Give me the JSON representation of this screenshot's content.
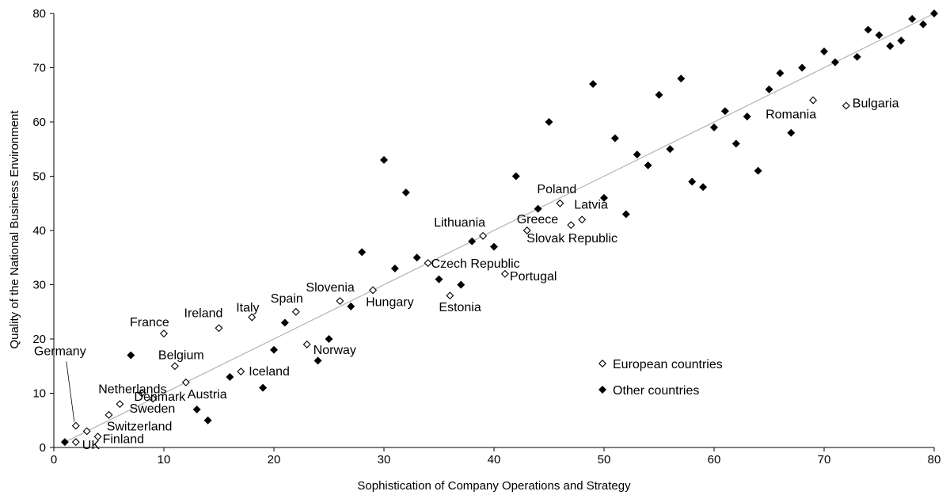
{
  "chart_data": {
    "type": "scatter",
    "title": "",
    "xlabel": "Sophistication of Company Operations and Strategy",
    "ylabel": "Quality of the National Business Environment",
    "xlim": [
      0,
      80
    ],
    "ylim": [
      0,
      80
    ],
    "x_ticks": [
      0,
      10,
      20,
      30,
      40,
      50,
      60,
      70,
      80
    ],
    "y_ticks": [
      0,
      10,
      20,
      30,
      40,
      50,
      60,
      70,
      80
    ],
    "grid": false,
    "legend_position": "right",
    "trendline": {
      "from": [
        1,
        1
      ],
      "to": [
        80,
        80
      ],
      "color": "#b3b3b3"
    },
    "series": [
      {
        "name": "European countries",
        "marker": "open-diamond",
        "color": "#000000",
        "points": [
          {
            "label": "UK",
            "x": 2,
            "y": 1
          },
          {
            "label": "Finland",
            "x": 4,
            "y": 2
          },
          {
            "label": "Switzerland",
            "x": 3,
            "y": 3
          },
          {
            "label": "Germany",
            "x": 2,
            "y": 4
          },
          {
            "label": "Sweden",
            "x": 5,
            "y": 6
          },
          {
            "label": "Denmark",
            "x": 6,
            "y": 8
          },
          {
            "label": "Netherlands",
            "x": 8,
            "y": 10
          },
          {
            "label": "",
            "x": 9,
            "y": 9
          },
          {
            "label": "Austria",
            "x": 12,
            "y": 12
          },
          {
            "label": "Belgium",
            "x": 11,
            "y": 15
          },
          {
            "label": "France",
            "x": 10,
            "y": 21
          },
          {
            "label": "Ireland",
            "x": 15,
            "y": 22
          },
          {
            "label": "Italy",
            "x": 18,
            "y": 24
          },
          {
            "label": "Spain",
            "x": 22,
            "y": 25
          },
          {
            "label": "Iceland",
            "x": 17,
            "y": 14
          },
          {
            "label": "Norway",
            "x": 23,
            "y": 19
          },
          {
            "label": "Slovenia",
            "x": 26,
            "y": 27
          },
          {
            "label": "Hungary",
            "x": 29,
            "y": 29
          },
          {
            "label": "Czech Republic",
            "x": 34,
            "y": 34
          },
          {
            "label": "Estonia",
            "x": 36,
            "y": 28
          },
          {
            "label": "Lithuania",
            "x": 39,
            "y": 39
          },
          {
            "label": "Portugal",
            "x": 41,
            "y": 32
          },
          {
            "label": "Greece",
            "x": 43,
            "y": 40
          },
          {
            "label": "Poland",
            "x": 46,
            "y": 45
          },
          {
            "label": "Slovak Republic",
            "x": 47,
            "y": 41
          },
          {
            "label": "Latvia",
            "x": 48,
            "y": 42
          },
          {
            "label": "Romania",
            "x": 69,
            "y": 64
          },
          {
            "label": "Bulgaria",
            "x": 72,
            "y": 63
          }
        ]
      },
      {
        "name": "Other countries",
        "marker": "filled-diamond",
        "color": "#000000",
        "points": [
          {
            "x": 1,
            "y": 1
          },
          {
            "x": 7,
            "y": 17
          },
          {
            "x": 13,
            "y": 7
          },
          {
            "x": 14,
            "y": 5
          },
          {
            "x": 16,
            "y": 13
          },
          {
            "x": 19,
            "y": 11
          },
          {
            "x": 20,
            "y": 18
          },
          {
            "x": 21,
            "y": 23
          },
          {
            "x": 24,
            "y": 16
          },
          {
            "x": 25,
            "y": 20
          },
          {
            "x": 27,
            "y": 26
          },
          {
            "x": 28,
            "y": 36
          },
          {
            "x": 30,
            "y": 53
          },
          {
            "x": 31,
            "y": 33
          },
          {
            "x": 32,
            "y": 47
          },
          {
            "x": 33,
            "y": 35
          },
          {
            "x": 35,
            "y": 31
          },
          {
            "x": 37,
            "y": 30
          },
          {
            "x": 38,
            "y": 38
          },
          {
            "x": 40,
            "y": 37
          },
          {
            "x": 42,
            "y": 50
          },
          {
            "x": 44,
            "y": 44
          },
          {
            "x": 45,
            "y": 60
          },
          {
            "x": 49,
            "y": 67
          },
          {
            "x": 50,
            "y": 46
          },
          {
            "x": 51,
            "y": 57
          },
          {
            "x": 52,
            "y": 43
          },
          {
            "x": 53,
            "y": 54
          },
          {
            "x": 54,
            "y": 52
          },
          {
            "x": 55,
            "y": 65
          },
          {
            "x": 56,
            "y": 55
          },
          {
            "x": 57,
            "y": 68
          },
          {
            "x": 58,
            "y": 49
          },
          {
            "x": 59,
            "y": 48
          },
          {
            "x": 60,
            "y": 59
          },
          {
            "x": 61,
            "y": 62
          },
          {
            "x": 62,
            "y": 56
          },
          {
            "x": 63,
            "y": 61
          },
          {
            "x": 64,
            "y": 51
          },
          {
            "x": 65,
            "y": 66
          },
          {
            "x": 66,
            "y": 69
          },
          {
            "x": 67,
            "y": 58
          },
          {
            "x": 68,
            "y": 70
          },
          {
            "x": 70,
            "y": 73
          },
          {
            "x": 71,
            "y": 71
          },
          {
            "x": 73,
            "y": 72
          },
          {
            "x": 74,
            "y": 77
          },
          {
            "x": 75,
            "y": 76
          },
          {
            "x": 76,
            "y": 74
          },
          {
            "x": 77,
            "y": 75
          },
          {
            "x": 78,
            "y": 79
          },
          {
            "x": 79,
            "y": 78
          },
          {
            "x": 80,
            "y": 80
          }
        ]
      }
    ]
  }
}
